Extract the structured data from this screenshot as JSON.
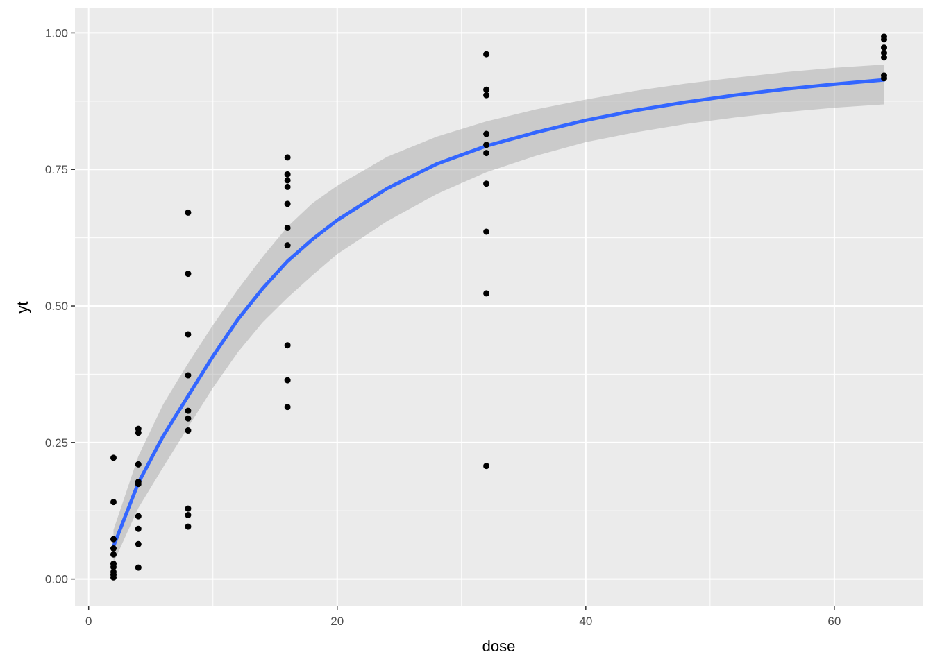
{
  "chart_data": {
    "type": "scatter",
    "title": "",
    "xlabel": "dose",
    "ylabel": "yt",
    "xlim": [
      -1.1,
      67.1
    ],
    "ylim": [
      -0.05,
      1.045
    ],
    "x_ticks": [
      0,
      20,
      40,
      60
    ],
    "x_tick_labels": [
      "0",
      "20",
      "40",
      "60"
    ],
    "x_minor_ticks": [
      10,
      30,
      50
    ],
    "y_ticks": [
      0,
      0.25,
      0.5,
      0.75,
      1.0
    ],
    "y_tick_labels": [
      "0.00",
      "0.25",
      "0.50",
      "0.75",
      "1.00"
    ],
    "y_minor_ticks": [
      0.125,
      0.375,
      0.625,
      0.875
    ],
    "grid": true,
    "legend": "none",
    "colors": {
      "panel_background": "#ebebeb",
      "grid_line": "#ffffff",
      "point": "#000000",
      "smooth_line": "#3366ff",
      "confidence_band": "#999999",
      "tick_label": "#4d4d4d",
      "tick_mark": "#333333"
    },
    "points": [
      {
        "x": 2,
        "y": 0.222
      },
      {
        "x": 2,
        "y": 0.141
      },
      {
        "x": 2,
        "y": 0.073
      },
      {
        "x": 2,
        "y": 0.056
      },
      {
        "x": 2,
        "y": 0.045
      },
      {
        "x": 2,
        "y": 0.028
      },
      {
        "x": 2,
        "y": 0.022
      },
      {
        "x": 2,
        "y": 0.013
      },
      {
        "x": 2,
        "y": 0.008
      },
      {
        "x": 2,
        "y": 0.003
      },
      {
        "x": 4,
        "y": 0.275
      },
      {
        "x": 4,
        "y": 0.268
      },
      {
        "x": 4,
        "y": 0.21
      },
      {
        "x": 4,
        "y": 0.178
      },
      {
        "x": 4,
        "y": 0.174
      },
      {
        "x": 4,
        "y": 0.115
      },
      {
        "x": 4,
        "y": 0.092
      },
      {
        "x": 4,
        "y": 0.064
      },
      {
        "x": 4,
        "y": 0.021
      },
      {
        "x": 8,
        "y": 0.671
      },
      {
        "x": 8,
        "y": 0.559
      },
      {
        "x": 8,
        "y": 0.448
      },
      {
        "x": 8,
        "y": 0.373
      },
      {
        "x": 8,
        "y": 0.308
      },
      {
        "x": 8,
        "y": 0.294
      },
      {
        "x": 8,
        "y": 0.272
      },
      {
        "x": 8,
        "y": 0.129
      },
      {
        "x": 8,
        "y": 0.117
      },
      {
        "x": 8,
        "y": 0.096
      },
      {
        "x": 16,
        "y": 0.772
      },
      {
        "x": 16,
        "y": 0.741
      },
      {
        "x": 16,
        "y": 0.73
      },
      {
        "x": 16,
        "y": 0.718
      },
      {
        "x": 16,
        "y": 0.687
      },
      {
        "x": 16,
        "y": 0.643
      },
      {
        "x": 16,
        "y": 0.611
      },
      {
        "x": 16,
        "y": 0.428
      },
      {
        "x": 16,
        "y": 0.364
      },
      {
        "x": 16,
        "y": 0.315
      },
      {
        "x": 32,
        "y": 0.961
      },
      {
        "x": 32,
        "y": 0.896
      },
      {
        "x": 32,
        "y": 0.886
      },
      {
        "x": 32,
        "y": 0.815
      },
      {
        "x": 32,
        "y": 0.795
      },
      {
        "x": 32,
        "y": 0.78
      },
      {
        "x": 32,
        "y": 0.724
      },
      {
        "x": 32,
        "y": 0.636
      },
      {
        "x": 32,
        "y": 0.523
      },
      {
        "x": 32,
        "y": 0.207
      },
      {
        "x": 64,
        "y": 0.993
      },
      {
        "x": 64,
        "y": 0.988
      },
      {
        "x": 64,
        "y": 0.973
      },
      {
        "x": 64,
        "y": 0.963
      },
      {
        "x": 64,
        "y": 0.955
      },
      {
        "x": 64,
        "y": 0.922
      },
      {
        "x": 64,
        "y": 0.917
      }
    ],
    "smooth": {
      "x": [
        2,
        4,
        6,
        8,
        10,
        12,
        14,
        16,
        18,
        20,
        24,
        28,
        32,
        36,
        40,
        44,
        48,
        52,
        56,
        60,
        64
      ],
      "y": [
        0.06,
        0.176,
        0.262,
        0.335,
        0.408,
        0.475,
        0.532,
        0.582,
        0.622,
        0.657,
        0.715,
        0.76,
        0.793,
        0.818,
        0.84,
        0.858,
        0.873,
        0.886,
        0.897,
        0.906,
        0.914
      ],
      "lower": [
        0.03,
        0.13,
        0.205,
        0.278,
        0.35,
        0.415,
        0.47,
        0.515,
        0.556,
        0.595,
        0.655,
        0.705,
        0.745,
        0.775,
        0.8,
        0.818,
        0.833,
        0.845,
        0.855,
        0.863,
        0.869
      ],
      "upper": [
        0.09,
        0.225,
        0.32,
        0.395,
        0.465,
        0.53,
        0.59,
        0.645,
        0.688,
        0.72,
        0.773,
        0.81,
        0.838,
        0.86,
        0.878,
        0.894,
        0.907,
        0.918,
        0.928,
        0.936,
        0.942
      ]
    }
  }
}
